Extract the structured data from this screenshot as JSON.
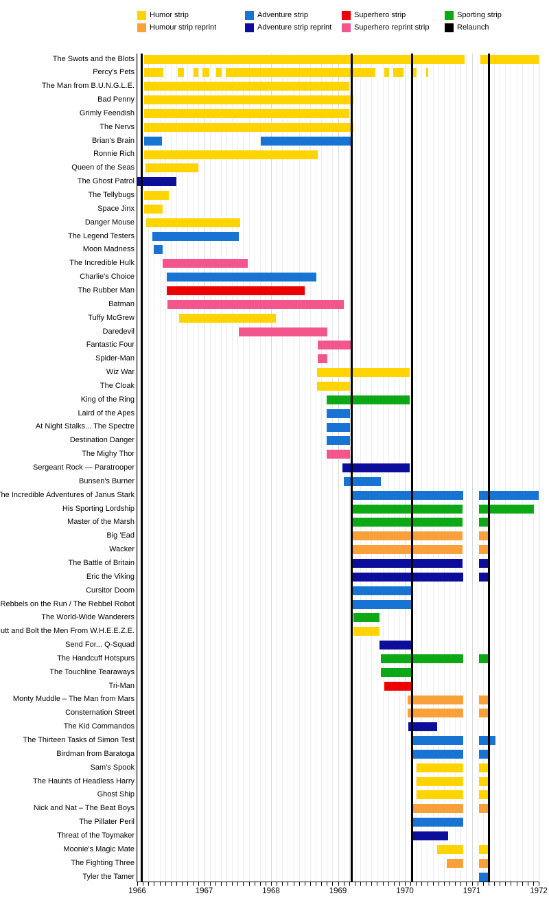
{
  "figure": {
    "background": "#FFFFFF"
  },
  "chart_data": {
    "type": "timeline",
    "title": "",
    "x_axis": {
      "min": 1966,
      "max": 1972,
      "year_labels": [
        "1966",
        "1967",
        "1968",
        "1969",
        "1970",
        "1971",
        "1972"
      ],
      "minor_tick": "month",
      "grid": true
    },
    "legend": [
      {
        "id": "humor",
        "label": "Humor strip"
      },
      {
        "id": "humor_reprint",
        "label": "Humour strip reprint"
      },
      {
        "id": "adventure",
        "label": "Adventure strip"
      },
      {
        "id": "adventure_reprint",
        "label": "Adventure strip reprint"
      },
      {
        "id": "superhero",
        "label": "Superhero strip"
      },
      {
        "id": "superhero_reprint",
        "label": "Superhero reprint strip"
      },
      {
        "id": "sporting",
        "label": "Sporting strip"
      },
      {
        "id": "relaunch",
        "label": "Relaunch"
      }
    ],
    "colors": {
      "humor": "#FFD400",
      "humor_reprint": "#F8A13B",
      "adventure": "#1874D2",
      "adventure_reprint": "#0D0D9B",
      "superhero": "#ED0000",
      "superhero_reprint": "#F2568C",
      "sporting": "#0CA816",
      "relaunch": "#000000"
    },
    "relaunch_lines_years": [
      1966.07,
      1969.2,
      1970.11,
      1971.26
    ],
    "rows": [
      {
        "label": "The Swots and the Blots",
        "segments": [
          {
            "c": "humor",
            "s": 1966.1,
            "e": 1970.89
          },
          {
            "c": "humor",
            "s": 1971.13,
            "e": 1972.0
          }
        ]
      },
      {
        "label": "Percy's Pets",
        "segments": [
          {
            "c": "humor",
            "s": 1966.1,
            "e": 1966.39
          },
          {
            "c": "humor",
            "s": 1966.6,
            "e": 1966.7
          },
          {
            "c": "humor",
            "s": 1966.84,
            "e": 1966.91
          },
          {
            "c": "humor",
            "s": 1966.97,
            "e": 1967.08
          },
          {
            "c": "humor",
            "s": 1967.18,
            "e": 1967.26
          },
          {
            "c": "humor",
            "s": 1967.32,
            "e": 1969.56
          },
          {
            "c": "humor",
            "s": 1969.69,
            "e": 1969.76
          },
          {
            "c": "humor",
            "s": 1969.83,
            "e": 1969.98
          },
          {
            "c": "humor",
            "s": 1970.12,
            "e": 1970.17
          },
          {
            "c": "humor",
            "s": 1970.32,
            "e": 1970.35
          }
        ]
      },
      {
        "label": "The Man from B.U.N.G.L.E.",
        "segments": [
          {
            "c": "humor",
            "s": 1966.1,
            "e": 1969.17
          }
        ]
      },
      {
        "label": "Bad Penny",
        "segments": [
          {
            "c": "humor",
            "s": 1966.1,
            "e": 1969.23
          }
        ]
      },
      {
        "label": "Grimly Feendish",
        "segments": [
          {
            "c": "humor",
            "s": 1966.1,
            "e": 1969.17
          }
        ]
      },
      {
        "label": "The Nervs",
        "segments": [
          {
            "c": "humor",
            "s": 1966.1,
            "e": 1969.23
          }
        ]
      },
      {
        "label": "Brian's Brain",
        "segments": [
          {
            "c": "adventure",
            "s": 1966.1,
            "e": 1966.37
          },
          {
            "c": "adventure",
            "s": 1967.85,
            "e": 1969.2
          }
        ]
      },
      {
        "label": "Ronnie Rich",
        "segments": [
          {
            "c": "humor",
            "s": 1966.1,
            "e": 1968.7
          }
        ]
      },
      {
        "label": "Queen of the Seas",
        "segments": [
          {
            "c": "humor",
            "s": 1966.12,
            "e": 1966.91
          }
        ]
      },
      {
        "label": "The Ghost Patrol",
        "segments": [
          {
            "c": "adventure_reprint",
            "s": 1966.0,
            "e": 1966.58
          }
        ]
      },
      {
        "label": "The Tellybugs",
        "segments": [
          {
            "c": "humor",
            "s": 1966.1,
            "e": 1966.47
          }
        ]
      },
      {
        "label": "Space Jinx",
        "segments": [
          {
            "c": "humor",
            "s": 1966.1,
            "e": 1966.38
          }
        ]
      },
      {
        "label": "Danger Mouse",
        "segments": [
          {
            "c": "humor",
            "s": 1966.13,
            "e": 1967.54
          }
        ]
      },
      {
        "label": "The Legend Testers",
        "segments": [
          {
            "c": "adventure",
            "s": 1966.22,
            "e": 1967.52
          }
        ]
      },
      {
        "label": "Moon Madness",
        "segments": [
          {
            "c": "adventure",
            "s": 1966.25,
            "e": 1966.38
          }
        ]
      },
      {
        "label": "The Incredible Hulk",
        "segments": [
          {
            "c": "superhero_reprint",
            "s": 1966.38,
            "e": 1967.65
          }
        ]
      },
      {
        "label": "Charlie's Choice",
        "segments": [
          {
            "c": "adventure",
            "s": 1966.44,
            "e": 1968.68
          }
        ]
      },
      {
        "label": "The Rubber Man",
        "segments": [
          {
            "c": "superhero",
            "s": 1966.44,
            "e": 1968.5
          }
        ]
      },
      {
        "label": "Batman",
        "segments": [
          {
            "c": "superhero_reprint",
            "s": 1966.45,
            "e": 1969.09
          }
        ]
      },
      {
        "label": "Tuffy McGrew",
        "segments": [
          {
            "c": "humor",
            "s": 1966.63,
            "e": 1968.07
          }
        ]
      },
      {
        "label": "Daredevil",
        "segments": [
          {
            "c": "superhero_reprint",
            "s": 1967.52,
            "e": 1968.84
          }
        ]
      },
      {
        "label": "Fantastic Four",
        "segments": [
          {
            "c": "superhero_reprint",
            "s": 1968.7,
            "e": 1969.2
          }
        ]
      },
      {
        "label": "Spider-Man",
        "segments": [
          {
            "c": "superhero_reprint",
            "s": 1968.7,
            "e": 1968.84
          }
        ]
      },
      {
        "label": "Wiz War",
        "segments": [
          {
            "c": "humor",
            "s": 1968.69,
            "e": 1970.07
          }
        ]
      },
      {
        "label": "The Cloak",
        "segments": [
          {
            "c": "humor",
            "s": 1968.69,
            "e": 1969.18
          }
        ]
      },
      {
        "label": "King of the Ring",
        "segments": [
          {
            "c": "sporting",
            "s": 1968.83,
            "e": 1970.07
          }
        ]
      },
      {
        "label": "Laird of the Apes",
        "segments": [
          {
            "c": "adventure",
            "s": 1968.83,
            "e": 1969.18
          }
        ]
      },
      {
        "label": "At Night Stalks... The Spectre",
        "segments": [
          {
            "c": "adventure",
            "s": 1968.83,
            "e": 1969.18
          }
        ]
      },
      {
        "label": "Destination Danger",
        "segments": [
          {
            "c": "adventure",
            "s": 1968.83,
            "e": 1969.18
          }
        ]
      },
      {
        "label": "The Mighy Thor",
        "segments": [
          {
            "c": "superhero_reprint",
            "s": 1968.83,
            "e": 1969.18
          }
        ]
      },
      {
        "label": "Sergeant Rock — Paratrooper",
        "segments": [
          {
            "c": "adventure_reprint",
            "s": 1969.07,
            "e": 1970.07
          }
        ]
      },
      {
        "label": "Bunsen's Burner",
        "segments": [
          {
            "c": "adventure",
            "s": 1969.09,
            "e": 1969.64
          }
        ]
      },
      {
        "label": "The Incredible Adventures of Janus Stark",
        "segments": [
          {
            "c": "adventure",
            "s": 1969.21,
            "e": 1970.87
          },
          {
            "c": "adventure",
            "s": 1971.11,
            "e": 1972.0
          }
        ]
      },
      {
        "label": "His Sporting Lordship",
        "segments": [
          {
            "c": "sporting",
            "s": 1969.21,
            "e": 1970.86
          },
          {
            "c": "sporting",
            "s": 1971.11,
            "e": 1971.93
          }
        ]
      },
      {
        "label": "Master of the Marsh",
        "segments": [
          {
            "c": "sporting",
            "s": 1969.21,
            "e": 1970.86
          },
          {
            "c": "sporting",
            "s": 1971.11,
            "e": 1971.25
          }
        ]
      },
      {
        "label": "Big 'Ead",
        "segments": [
          {
            "c": "humor_reprint",
            "s": 1969.21,
            "e": 1970.86
          },
          {
            "c": "humor_reprint",
            "s": 1971.11,
            "e": 1971.25
          }
        ]
      },
      {
        "label": "Wacker",
        "segments": [
          {
            "c": "humor_reprint",
            "s": 1969.21,
            "e": 1970.86
          },
          {
            "c": "humor_reprint",
            "s": 1971.11,
            "e": 1971.25
          }
        ]
      },
      {
        "label": "The Battle of Britain",
        "segments": [
          {
            "c": "adventure_reprint",
            "s": 1969.21,
            "e": 1970.86
          },
          {
            "c": "adventure_reprint",
            "s": 1971.11,
            "e": 1971.25
          }
        ]
      },
      {
        "label": "Eric the Viking",
        "segments": [
          {
            "c": "adventure_reprint",
            "s": 1969.21,
            "e": 1970.87
          },
          {
            "c": "adventure_reprint",
            "s": 1971.11,
            "e": 1971.25
          }
        ]
      },
      {
        "label": "Cursitor Doom",
        "segments": [
          {
            "c": "adventure",
            "s": 1969.21,
            "e": 1970.09
          }
        ]
      },
      {
        "label": "Rebbels on the Run / The Rebbel Robot",
        "segments": [
          {
            "c": "adventure",
            "s": 1969.21,
            "e": 1970.09
          }
        ]
      },
      {
        "label": "The World-Wide Wanderers",
        "segments": [
          {
            "c": "sporting",
            "s": 1969.23,
            "e": 1969.62
          }
        ]
      },
      {
        "label": "Nutt and Bolt the Men From W.H.E.E.Z.E.",
        "segments": [
          {
            "c": "humor",
            "s": 1969.23,
            "e": 1969.62
          }
        ]
      },
      {
        "label": "Send For... Q-Squad",
        "segments": [
          {
            "c": "adventure_reprint",
            "s": 1969.62,
            "e": 1970.1
          }
        ]
      },
      {
        "label": "The Handcuff Hotspurs",
        "segments": [
          {
            "c": "sporting",
            "s": 1969.64,
            "e": 1970.87
          },
          {
            "c": "sporting",
            "s": 1971.11,
            "e": 1971.25
          }
        ]
      },
      {
        "label": "The Touchline Tearaways",
        "segments": [
          {
            "c": "sporting",
            "s": 1969.64,
            "e": 1970.1
          }
        ]
      },
      {
        "label": "Tri-Man",
        "segments": [
          {
            "c": "superhero",
            "s": 1969.69,
            "e": 1970.09
          }
        ]
      },
      {
        "label": "Monty Muddle – The Man from Mars",
        "segments": [
          {
            "c": "humor_reprint",
            "s": 1970.04,
            "e": 1970.87
          },
          {
            "c": "humor_reprint",
            "s": 1971.11,
            "e": 1971.25
          }
        ]
      },
      {
        "label": "Consternation Street",
        "segments": [
          {
            "c": "humor_reprint",
            "s": 1970.04,
            "e": 1970.87
          },
          {
            "c": "humor_reprint",
            "s": 1971.11,
            "e": 1971.25
          }
        ]
      },
      {
        "label": "The Kid Commandos",
        "segments": [
          {
            "c": "adventure_reprint",
            "s": 1970.05,
            "e": 1970.48
          }
        ]
      },
      {
        "label": "The Thirteen Tasks of Simon Test",
        "segments": [
          {
            "c": "adventure",
            "s": 1970.12,
            "e": 1970.87
          },
          {
            "c": "adventure",
            "s": 1971.11,
            "e": 1971.35
          }
        ]
      },
      {
        "label": "Birdman from Baratoga",
        "segments": [
          {
            "c": "adventure",
            "s": 1970.12,
            "e": 1970.87
          },
          {
            "c": "adventure",
            "s": 1971.11,
            "e": 1971.25
          }
        ]
      },
      {
        "label": "Sam's Spook",
        "segments": [
          {
            "c": "humor",
            "s": 1970.17,
            "e": 1970.87
          },
          {
            "c": "humor",
            "s": 1971.11,
            "e": 1971.25
          }
        ]
      },
      {
        "label": "The Haunts of Headless Harry",
        "segments": [
          {
            "c": "humor",
            "s": 1970.17,
            "e": 1970.87
          },
          {
            "c": "humor",
            "s": 1971.11,
            "e": 1971.25
          }
        ]
      },
      {
        "label": "Ghost Ship",
        "segments": [
          {
            "c": "humor",
            "s": 1970.17,
            "e": 1970.87
          },
          {
            "c": "humor",
            "s": 1971.11,
            "e": 1971.25
          }
        ]
      },
      {
        "label": "Nick and Nat – The Beat Boys",
        "segments": [
          {
            "c": "humor_reprint",
            "s": 1970.12,
            "e": 1970.87
          },
          {
            "c": "humor_reprint",
            "s": 1971.11,
            "e": 1971.25
          }
        ]
      },
      {
        "label": "The Pillater Peril",
        "segments": [
          {
            "c": "adventure",
            "s": 1970.12,
            "e": 1970.87
          }
        ]
      },
      {
        "label": "Threat of the Toymaker",
        "segments": [
          {
            "c": "adventure_reprint",
            "s": 1970.12,
            "e": 1970.65
          }
        ]
      },
      {
        "label": "Moonie's Magic Mate",
        "segments": [
          {
            "c": "humor",
            "s": 1970.48,
            "e": 1970.87
          },
          {
            "c": "humor",
            "s": 1971.11,
            "e": 1971.25
          }
        ]
      },
      {
        "label": "The Fighting Three",
        "segments": [
          {
            "c": "humor_reprint",
            "s": 1970.63,
            "e": 1970.87
          },
          {
            "c": "humor_reprint",
            "s": 1971.11,
            "e": 1971.25
          }
        ]
      },
      {
        "label": "Tyler the Tamer",
        "segments": [
          {
            "c": "adventure",
            "s": 1971.11,
            "e": 1971.25
          }
        ]
      }
    ]
  }
}
